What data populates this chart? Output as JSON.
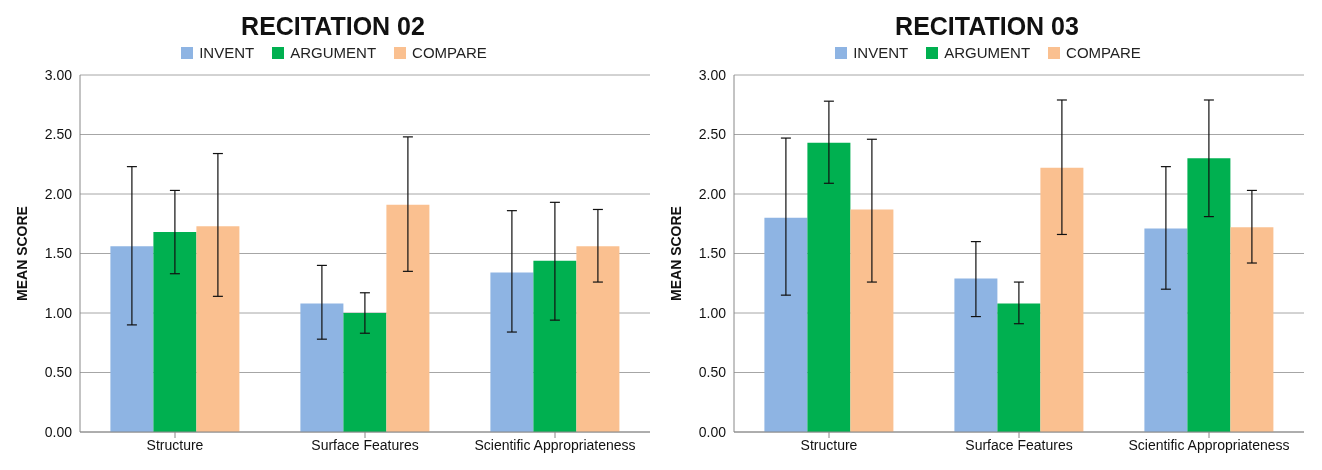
{
  "chart_data": [
    {
      "type": "bar",
      "title": "RECITATION 02",
      "ylabel": "MEAN SCORE",
      "categories": [
        "Structure",
        "Surface Features",
        "Scientific Appropriateness"
      ],
      "series": [
        {
          "name": "INVENT",
          "color": "#8eb4e3",
          "values": [
            1.56,
            1.08,
            1.34
          ],
          "errors": [
            [
              0.9,
              2.23
            ],
            [
              0.78,
              1.4
            ],
            [
              0.84,
              1.86
            ]
          ]
        },
        {
          "name": "ARGUMENT",
          "color": "#00b050",
          "values": [
            1.68,
            1.0,
            1.44
          ],
          "errors": [
            [
              1.33,
              2.03
            ],
            [
              0.83,
              1.17
            ],
            [
              0.94,
              1.93
            ]
          ]
        },
        {
          "name": "COMPARE",
          "color": "#fac090",
          "values": [
            1.73,
            1.91,
            1.56
          ],
          "errors": [
            [
              1.14,
              2.34
            ],
            [
              1.35,
              2.48
            ],
            [
              1.26,
              1.87
            ]
          ]
        }
      ],
      "ylim": [
        0,
        3
      ],
      "yticks": [
        {
          "value": 0,
          "label": "0.00"
        },
        {
          "value": 0.5,
          "label": "0.50"
        },
        {
          "value": 1,
          "label": "1.00"
        },
        {
          "value": 1.5,
          "label": "1.50"
        },
        {
          "value": 2,
          "label": "2.00"
        },
        {
          "value": 2.5,
          "label": "2.50"
        },
        {
          "value": 3,
          "label": "3.00"
        }
      ],
      "grid": "y",
      "legend": "top"
    },
    {
      "type": "bar",
      "title": "RECITATION 03",
      "ylabel": "MEAN SCORE",
      "categories": [
        "Structure",
        "Surface Features",
        "Scientific Appropriateness"
      ],
      "series": [
        {
          "name": "INVENT",
          "color": "#8eb4e3",
          "values": [
            1.8,
            1.29,
            1.71
          ],
          "errors": [
            [
              1.15,
              2.47
            ],
            [
              0.97,
              1.6
            ],
            [
              1.2,
              2.23
            ]
          ]
        },
        {
          "name": "ARGUMENT",
          "color": "#00b050",
          "values": [
            2.43,
            1.08,
            2.3
          ],
          "errors": [
            [
              2.09,
              2.78
            ],
            [
              0.91,
              1.26
            ],
            [
              1.81,
              2.79
            ]
          ]
        },
        {
          "name": "COMPARE",
          "color": "#fac090",
          "values": [
            1.87,
            2.22,
            1.72
          ],
          "errors": [
            [
              1.26,
              2.46
            ],
            [
              1.66,
              2.79
            ],
            [
              1.42,
              2.03
            ]
          ]
        }
      ],
      "ylim": [
        0,
        3
      ],
      "yticks": [
        {
          "value": 0,
          "label": "0.00"
        },
        {
          "value": 0.5,
          "label": "0.50"
        },
        {
          "value": 1,
          "label": "1.00"
        },
        {
          "value": 1.5,
          "label": "1.50"
        },
        {
          "value": 2,
          "label": "2.00"
        },
        {
          "value": 2.5,
          "label": "2.50"
        },
        {
          "value": 3,
          "label": "3.00"
        }
      ],
      "grid": "y",
      "legend": "top"
    }
  ]
}
